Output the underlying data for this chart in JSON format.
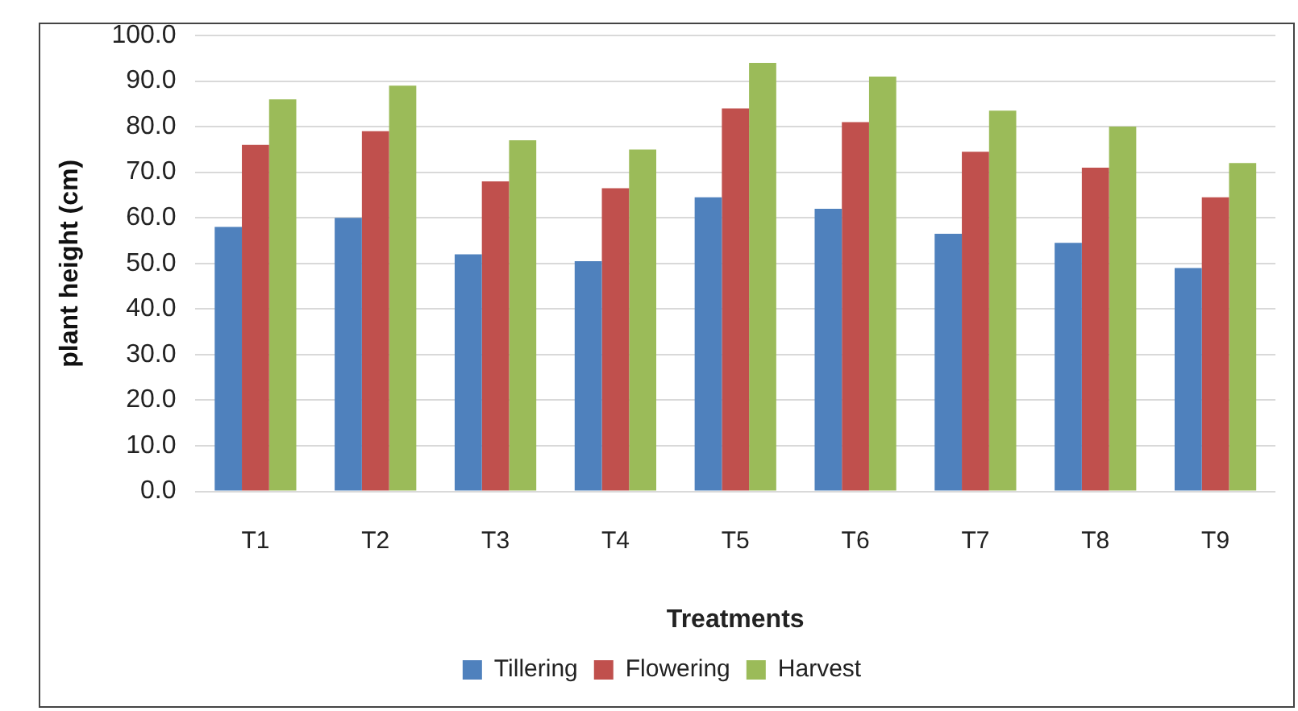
{
  "chart_data": {
    "type": "bar",
    "xlabel": "Treatments",
    "ylabel": "plant height (cm)",
    "categories": [
      "T1",
      "T2",
      "T3",
      "T4",
      "T5",
      "T6",
      "T7",
      "T8",
      "T9"
    ],
    "series": [
      {
        "name": "Tillering",
        "color": "#4f81bd",
        "values": [
          58,
          60,
          52,
          50.5,
          64.5,
          62,
          56.5,
          54.5,
          49
        ]
      },
      {
        "name": "Flowering",
        "color": "#c0504d",
        "values": [
          76,
          79,
          68,
          66.5,
          84,
          81,
          74.5,
          71,
          64.5
        ]
      },
      {
        "name": "Harvest",
        "color": "#9bbb59",
        "values": [
          86,
          89,
          77,
          75,
          94,
          91,
          83.5,
          80,
          72
        ]
      }
    ],
    "ylim": [
      0,
      100
    ],
    "yticks": [
      {
        "value": 0,
        "label": "0.0"
      },
      {
        "value": 10,
        "label": "10.0"
      },
      {
        "value": 20,
        "label": "20.0"
      },
      {
        "value": 30,
        "label": "30.0"
      },
      {
        "value": 40,
        "label": "40.0"
      },
      {
        "value": 50,
        "label": "50.0"
      },
      {
        "value": 60,
        "label": "60.0"
      },
      {
        "value": 70,
        "label": "70.0"
      },
      {
        "value": 80,
        "label": "80.0"
      },
      {
        "value": 90,
        "label": "90.0"
      },
      {
        "value": 100,
        "label": "100.0"
      }
    ],
    "grid": "y",
    "legend": "bottom"
  }
}
